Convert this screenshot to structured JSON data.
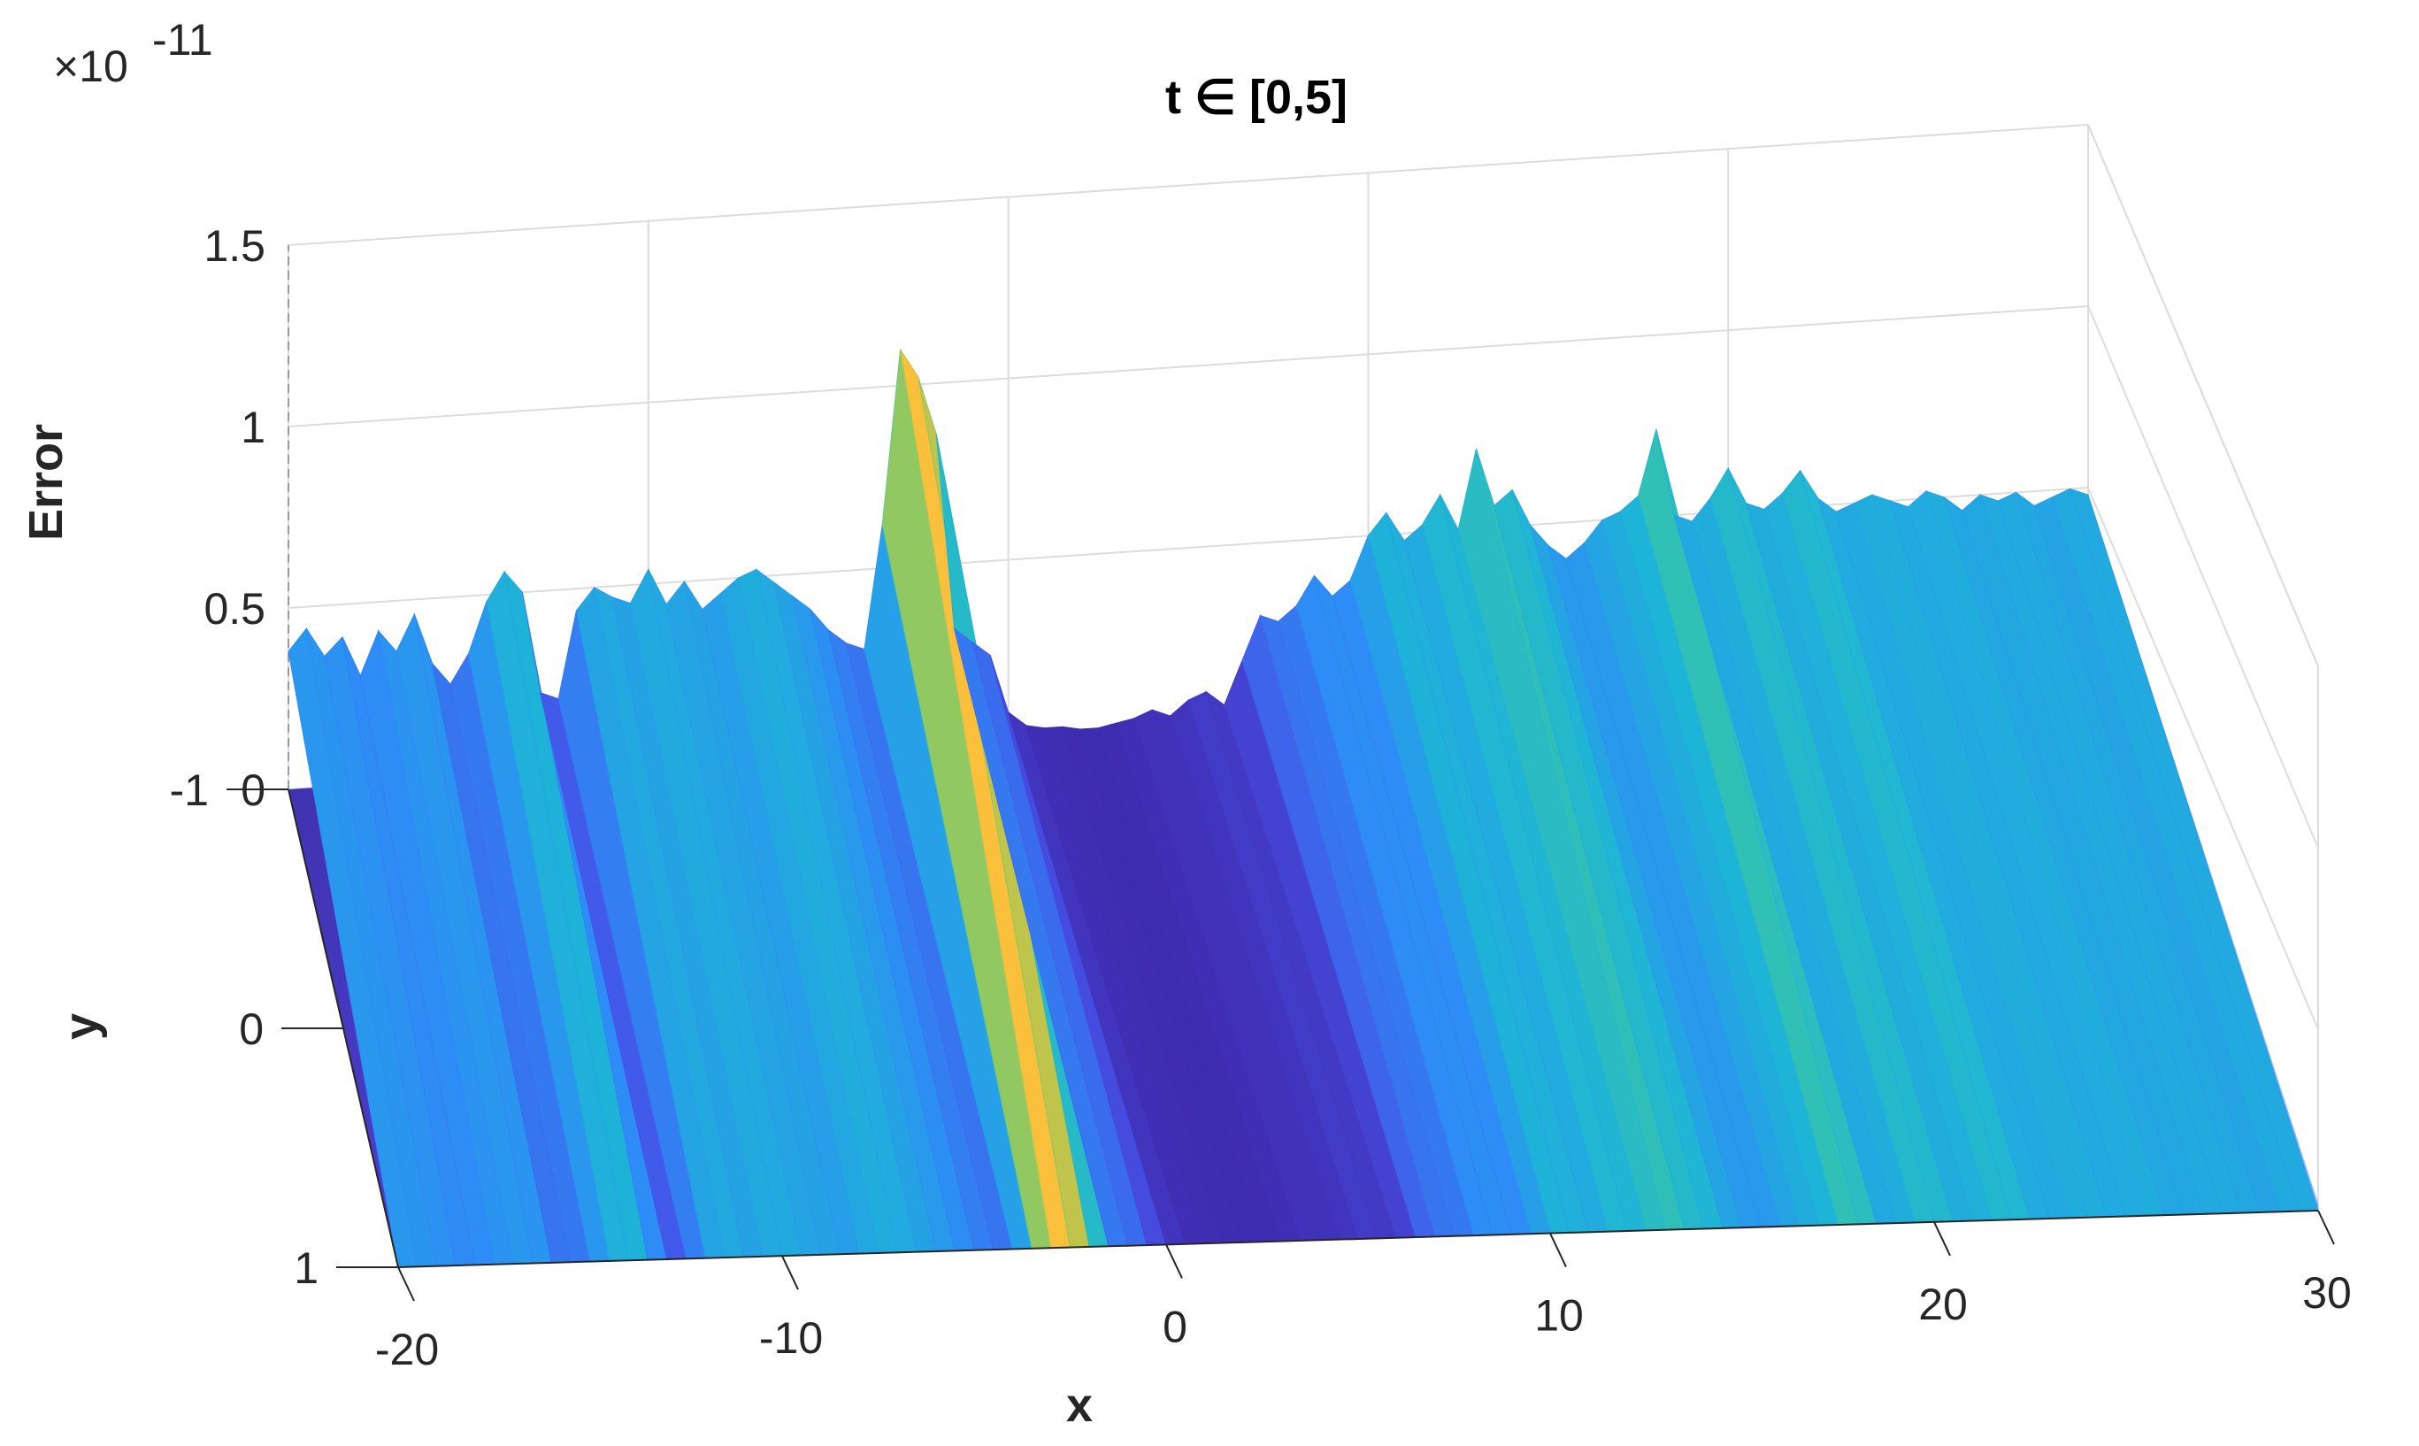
{
  "chart_data": {
    "type": "surface",
    "title": "t ∈ [0,5]",
    "xlabel": "x",
    "ylabel": "y",
    "zlabel": "Error",
    "z_multiplier": "×10",
    "z_exponent": "-11",
    "xlim": [
      -20,
      30
    ],
    "ylim": [
      -1,
      1
    ],
    "zlim": [
      0,
      1.5e-11
    ],
    "x_ticks": [
      "-20",
      "-10",
      "0",
      "10",
      "20",
      "30"
    ],
    "y_ticks": [
      "-1",
      "0",
      "1"
    ],
    "z_ticks": [
      "0",
      "0.5",
      "1",
      "1.5"
    ],
    "grid": true,
    "colormap": "parula",
    "colors": {
      "low": "#3e26a8",
      "mid": "#35b8bd",
      "high": "#f9fb15"
    },
    "ridges_z_e11": {
      "note_units": "x1e-11",
      "x": [
        -20,
        -19.5,
        -19,
        -18.5,
        -18,
        -17.5,
        -17,
        -16.5,
        -16,
        -15.5,
        -15,
        -14.5,
        -14,
        -13.5,
        -13,
        -12.5,
        -12,
        -11.5,
        -11,
        -10.5,
        -10,
        -9.5,
        -9,
        -8.5,
        -8,
        -7.5,
        -7,
        -6.5,
        -6,
        -5.5,
        -5,
        -4.5,
        -4,
        -3.5,
        -3,
        -2.5,
        -2,
        -1.5,
        -1,
        -0.5,
        0,
        0.5,
        1,
        1.5,
        2,
        2.5,
        3,
        3.5,
        4,
        4.5,
        5,
        5.5,
        6,
        6.5,
        7,
        7.5,
        8,
        8.5,
        9,
        9.5,
        10,
        10.5,
        11,
        11.5,
        12,
        12.5,
        13,
        13.5,
        14,
        14.5,
        15,
        15.5,
        16,
        16.5,
        17,
        17.5,
        18,
        18.5,
        19,
        19.5,
        20,
        20.5,
        21,
        21.5,
        22,
        22.5,
        23,
        23.5,
        24,
        24.5,
        25,
        25.5,
        26,
        26.5,
        27,
        27.5,
        28,
        28.5,
        29,
        29.5,
        30
      ],
      "z_at_y_minus1": [
        0.38,
        0.44,
        0.36,
        0.41,
        0.3,
        0.42,
        0.36,
        0.46,
        0.32,
        0.26,
        0.34,
        0.48,
        0.56,
        0.5,
        0.22,
        0.2,
        0.44,
        0.5,
        0.47,
        0.45,
        0.54,
        0.44,
        0.5,
        0.42,
        0.46,
        0.5,
        0.52,
        0.48,
        0.44,
        0.4,
        0.34,
        0.3,
        0.28,
        0.62,
        1.1,
        1.02,
        0.86,
        0.32,
        0.28,
        0.24,
        0.08,
        0.04,
        0.03,
        0.03,
        0.02,
        0.02,
        0.03,
        0.04,
        0.06,
        0.04,
        0.08,
        0.1,
        0.06,
        0.18,
        0.3,
        0.28,
        0.32,
        0.4,
        0.34,
        0.38,
        0.5,
        0.56,
        0.48,
        0.52,
        0.6,
        0.5,
        0.72,
        0.56,
        0.6,
        0.5,
        0.44,
        0.4,
        0.44,
        0.5,
        0.52,
        0.56,
        0.74,
        0.5,
        0.48,
        0.54,
        0.62,
        0.52,
        0.5,
        0.54,
        0.6,
        0.52,
        0.48,
        0.5,
        0.52,
        0.5,
        0.48,
        0.52,
        0.5,
        0.46,
        0.5,
        0.48,
        0.5,
        0.46,
        0.48,
        0.5,
        0.48
      ]
    }
  }
}
